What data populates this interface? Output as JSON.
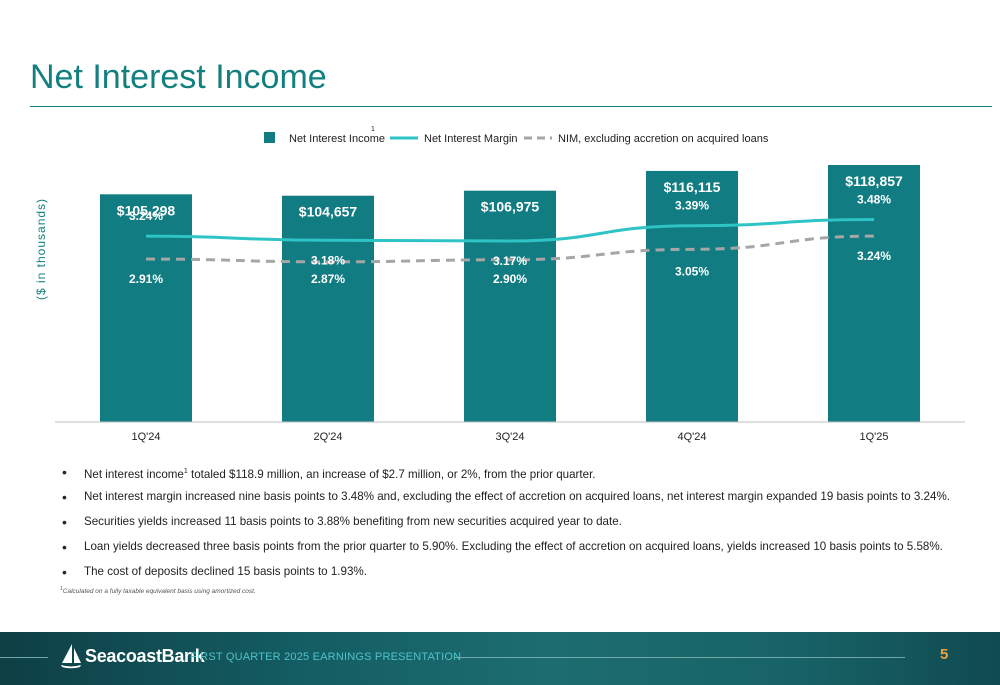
{
  "title": "Net Interest Income",
  "chart_data": {
    "type": "bar",
    "categories": [
      "1Q'24",
      "2Q'24",
      "3Q'24",
      "4Q'24",
      "1Q'25"
    ],
    "ylabel": "($ in thousands)",
    "series": [
      {
        "name": "Net Interest Income",
        "name_sup": "1",
        "kind": "bar",
        "color": "#117c82",
        "values": [
          105298,
          104657,
          106975,
          116115,
          118857
        ],
        "labels": [
          "$105,298",
          "$104,657",
          "$106,975",
          "$116,115",
          "$118,857"
        ]
      },
      {
        "name": "Net Interest Margin",
        "kind": "line",
        "color": "#2ec4c6",
        "values": [
          3.24,
          3.18,
          3.17,
          3.39,
          3.48
        ],
        "labels": [
          "3.24%",
          "3.18%",
          "3.17%",
          "3.39%",
          "3.48%"
        ]
      },
      {
        "name": "NIM, excluding accretion on acquired loans",
        "kind": "dashed-line",
        "color": "#a6a6a6",
        "values": [
          2.91,
          2.87,
          2.9,
          3.05,
          3.24
        ],
        "labels": [
          "2.91%",
          "2.87%",
          "2.90%",
          "3.05%",
          "3.24%"
        ]
      }
    ],
    "legend_position": "top-center",
    "grid": false
  },
  "bullets": [
    {
      "pre": "Net interest income",
      "sup": "1",
      "post": " totaled $118.9 million, an increase of $2.7 million, or 2%, from the prior quarter."
    },
    {
      "pre": "Net interest margin increased nine basis points to 3.48% and, excluding the effect of accretion on acquired loans, net interest margin expanded 19 basis points to 3.24%.",
      "sup": "",
      "post": ""
    },
    {
      "pre": "Securities yields increased 11 basis points to 3.88% benefiting from new securities acquired year to date.",
      "sup": "",
      "post": ""
    },
    {
      "pre": "Loan yields decreased three basis points from the prior quarter to 5.90%. Excluding the effect of accretion on acquired loans, yields increased 10 basis points to 5.58%.",
      "sup": "",
      "post": ""
    },
    {
      "pre": "The cost of deposits declined 15 basis points to 1.93%.",
      "sup": "",
      "post": ""
    }
  ],
  "footnote": {
    "sup": "1",
    "text": "Calculated on a fully taxable equivalent basis using amortized cost."
  },
  "footer": {
    "logo_text": "SeacoastBank",
    "caption": "FIRST QUARTER 2025 EARNINGS PRESENTATION",
    "page": "5",
    "colors": {
      "caption": "#4fc3c7",
      "page": "#f2a13a"
    }
  }
}
